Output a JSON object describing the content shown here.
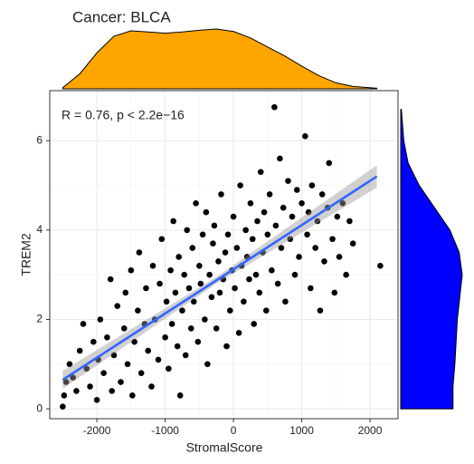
{
  "chart_data": {
    "type": "scatter",
    "title": "Cancer: BLCA",
    "annotation": "R = 0.76, p < 2.2e−16",
    "xlabel": "StromalScore",
    "ylabel": "TREM2",
    "xlim": [
      -2690,
      2410
    ],
    "ylim": [
      -0.22,
      7.12
    ],
    "xticks": [
      -2000,
      -1000,
      0,
      1000,
      2000
    ],
    "yticks": [
      0,
      2,
      4,
      6
    ],
    "xminor": [
      -1500,
      -500,
      500,
      1500
    ],
    "yminor": [
      1,
      3,
      5
    ],
    "grid": true,
    "color": "#000000",
    "x": [
      -2500,
      -2480,
      -2450,
      -2400,
      -2350,
      -2300,
      -2250,
      -2200,
      -2150,
      -2100,
      -2050,
      -2000,
      -1980,
      -1950,
      -1900,
      -1850,
      -1800,
      -1780,
      -1750,
      -1700,
      -1650,
      -1600,
      -1580,
      -1550,
      -1500,
      -1480,
      -1450,
      -1400,
      -1380,
      -1350,
      -1300,
      -1280,
      -1250,
      -1200,
      -1180,
      -1150,
      -1100,
      -1080,
      -1050,
      -1000,
      -980,
      -950,
      -920,
      -900,
      -880,
      -850,
      -820,
      -800,
      -780,
      -750,
      -720,
      -700,
      -680,
      -650,
      -620,
      -600,
      -580,
      -550,
      -520,
      -500,
      -480,
      -450,
      -420,
      -400,
      -380,
      -350,
      -320,
      -300,
      -280,
      -250,
      -220,
      -200,
      -180,
      -150,
      -120,
      -100,
      -80,
      -50,
      -20,
      0,
      20,
      50,
      80,
      100,
      120,
      150,
      180,
      200,
      230,
      250,
      280,
      300,
      330,
      350,
      380,
      400,
      430,
      450,
      480,
      500,
      530,
      560,
      600,
      620,
      650,
      680,
      700,
      730,
      760,
      800,
      830,
      860,
      900,
      930,
      960,
      1000,
      1050,
      1080,
      1100,
      1130,
      1150,
      1200,
      1230,
      1270,
      1300,
      1330,
      1380,
      1400,
      1450,
      1480,
      1520,
      1550,
      1600,
      1650,
      1700,
      1750,
      2150
    ],
    "values": [
      0.05,
      0.3,
      0.6,
      1.0,
      0.7,
      0.4,
      1.3,
      1.9,
      0.9,
      0.5,
      1.5,
      0.2,
      1.1,
      2.0,
      0.8,
      1.6,
      2.9,
      0.4,
      1.2,
      2.3,
      0.6,
      1.8,
      2.6,
      1.0,
      3.1,
      0.3,
      1.5,
      2.2,
      3.5,
      0.8,
      1.9,
      2.7,
      1.3,
      0.5,
      3.2,
      2.0,
      1.1,
      2.8,
      3.8,
      1.6,
      2.4,
      0.9,
      3.1,
      1.9,
      4.2,
      2.6,
      1.4,
      3.4,
      0.3,
      2.2,
      3.0,
      1.2,
      4.0,
      2.7,
      1.8,
      3.6,
      2.4,
      4.6,
      1.5,
      3.2,
      2.8,
      3.9,
      2.0,
      4.4,
      1.0,
      3.0,
      2.5,
      3.7,
      4.1,
      1.8,
      3.3,
      2.6,
      4.8,
      2.9,
      3.5,
      1.4,
      3.9,
      2.2,
      3.1,
      4.3,
      2.7,
      3.6,
      1.7,
      5.0,
      3.2,
      2.4,
      4.0,
      3.4,
      2.9,
      4.6,
      3.8,
      1.9,
      3.0,
      4.2,
      2.6,
      5.3,
      3.5,
      4.4,
      2.2,
      3.9,
      4.8,
      3.1,
      6.75,
      4.1,
      2.8,
      5.6,
      3.6,
      4.5,
      2.4,
      5.1,
      3.8,
      4.3,
      3.0,
      4.9,
      3.4,
      4.6,
      6.1,
      3.9,
      4.4,
      2.7,
      5.0,
      3.6,
      4.2,
      2.2,
      4.8,
      3.3,
      4.5,
      5.5,
      3.8,
      2.6,
      4.3,
      3.4,
      4.6,
      3.0,
      4.2,
      3.7,
      3.2
    ],
    "fit": {
      "color": "#3366ff",
      "band_color": "#999999",
      "x": [
        -2500,
        -250,
        2100
      ],
      "y": [
        0.65,
        2.875,
        5.2
      ],
      "lower": [
        0.45,
        2.8,
        4.95
      ],
      "upper": [
        0.85,
        2.95,
        5.45
      ]
    },
    "density_x": {
      "color": "#ffa500",
      "x": [
        -2500,
        -2250,
        -2000,
        -1750,
        -1500,
        -1250,
        -1000,
        -750,
        -500,
        -250,
        0,
        250,
        500,
        750,
        1000,
        1250,
        1500,
        1750,
        2100
      ],
      "density": [
        0.02,
        0.25,
        0.6,
        0.88,
        0.97,
        0.95,
        0.93,
        0.95,
        0.98,
        1.0,
        0.96,
        0.85,
        0.7,
        0.55,
        0.38,
        0.22,
        0.1,
        0.04,
        0.01
      ]
    },
    "density_y": {
      "color": "#0000ff",
      "y": [
        0,
        0.5,
        1,
        1.5,
        2,
        2.5,
        3,
        3.5,
        4,
        4.5,
        5,
        5.5,
        6,
        6.7
      ],
      "density": [
        0.85,
        0.85,
        0.88,
        0.9,
        0.92,
        0.96,
        1.0,
        0.95,
        0.8,
        0.55,
        0.3,
        0.12,
        0.05,
        0.01
      ]
    }
  }
}
